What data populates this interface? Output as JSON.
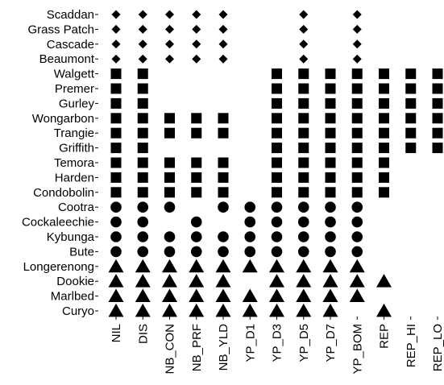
{
  "chart_data": {
    "type": "scatter",
    "title": "",
    "xlabel": "",
    "ylabel": "",
    "categories_x": [
      "NIL",
      "DIS",
      "NB_CON",
      "NB_PRF",
      "NB_YLD",
      "YP_D1",
      "YP_D3",
      "YP_D5",
      "YP_D7",
      "YP_BOM",
      "REP",
      "REP_HI",
      "REP_LO"
    ],
    "categories_y": [
      "Scaddan",
      "Grass Patch",
      "Cascade",
      "Beaumont",
      "Walgett",
      "Premer",
      "Gurley",
      "Wongarbon",
      "Trangie",
      "Griffith",
      "Temora",
      "Harden",
      "Condobolin",
      "Cootra",
      "Cockaleechie",
      "Kybunga",
      "Bute",
      "Longerenong",
      "Dookie",
      "Marlbed",
      "Curyo"
    ],
    "points": [
      {
        "site": "Scaddan",
        "shape": "diamond",
        "present": [
          "NIL",
          "DIS",
          "NB_CON",
          "NB_PRF",
          "NB_YLD",
          "YP_D5",
          "YP_BOM"
        ]
      },
      {
        "site": "Grass Patch",
        "shape": "diamond",
        "present": [
          "NIL",
          "DIS",
          "NB_CON",
          "NB_PRF",
          "NB_YLD",
          "YP_D5",
          "YP_BOM"
        ]
      },
      {
        "site": "Cascade",
        "shape": "diamond",
        "present": [
          "NIL",
          "DIS",
          "NB_CON",
          "NB_PRF",
          "NB_YLD",
          "YP_D5",
          "YP_BOM"
        ]
      },
      {
        "site": "Beaumont",
        "shape": "diamond",
        "present": [
          "NIL",
          "DIS",
          "NB_CON",
          "NB_PRF",
          "NB_YLD",
          "YP_D5",
          "YP_BOM"
        ]
      },
      {
        "site": "Walgett",
        "shape": "square",
        "present": [
          "NIL",
          "DIS",
          "YP_D3",
          "YP_D5",
          "YP_D7",
          "YP_BOM",
          "REP",
          "REP_HI",
          "REP_LO"
        ]
      },
      {
        "site": "Premer",
        "shape": "square",
        "present": [
          "NIL",
          "DIS",
          "YP_D3",
          "YP_D5",
          "YP_D7",
          "YP_BOM",
          "REP",
          "REP_HI",
          "REP_LO"
        ]
      },
      {
        "site": "Gurley",
        "shape": "square",
        "present": [
          "NIL",
          "DIS",
          "YP_D3",
          "YP_D5",
          "YP_D7",
          "YP_BOM",
          "REP",
          "REP_HI",
          "REP_LO"
        ]
      },
      {
        "site": "Wongarbon",
        "shape": "square",
        "present": [
          "NIL",
          "DIS",
          "NB_CON",
          "NB_PRF",
          "NB_YLD",
          "YP_D3",
          "YP_D5",
          "YP_D7",
          "YP_BOM",
          "REP",
          "REP_HI",
          "REP_LO"
        ]
      },
      {
        "site": "Trangie",
        "shape": "square",
        "present": [
          "NIL",
          "DIS",
          "NB_CON",
          "NB_PRF",
          "NB_YLD",
          "YP_D3",
          "YP_D5",
          "YP_D7",
          "YP_BOM",
          "REP",
          "REP_HI",
          "REP_LO"
        ]
      },
      {
        "site": "Griffith",
        "shape": "square",
        "present": [
          "NIL",
          "DIS",
          "YP_D3",
          "YP_D5",
          "YP_D7",
          "YP_BOM",
          "REP",
          "REP_HI",
          "REP_LO"
        ]
      },
      {
        "site": "Temora",
        "shape": "square",
        "present": [
          "NIL",
          "DIS",
          "NB_CON",
          "NB_PRF",
          "NB_YLD",
          "YP_D3",
          "YP_D5",
          "YP_D7",
          "YP_BOM",
          "REP"
        ]
      },
      {
        "site": "Harden",
        "shape": "square",
        "present": [
          "NIL",
          "DIS",
          "NB_CON",
          "NB_PRF",
          "NB_YLD",
          "YP_D3",
          "YP_D5",
          "YP_D7",
          "YP_BOM",
          "REP"
        ]
      },
      {
        "site": "Condobolin",
        "shape": "square",
        "present": [
          "NIL",
          "DIS",
          "NB_CON",
          "NB_PRF",
          "NB_YLD",
          "YP_D3",
          "YP_D5",
          "YP_D7",
          "YP_BOM",
          "REP"
        ]
      },
      {
        "site": "Cootra",
        "shape": "circle",
        "present": [
          "NIL",
          "DIS",
          "NB_CON",
          "NB_YLD",
          "YP_D1",
          "YP_D3",
          "YP_D5",
          "YP_D7",
          "YP_BOM"
        ]
      },
      {
        "site": "Cockaleechie",
        "shape": "circle",
        "present": [
          "NIL",
          "DIS",
          "NB_PRF",
          "YP_D1",
          "YP_D3",
          "YP_D5",
          "YP_D7",
          "YP_BOM"
        ]
      },
      {
        "site": "Kybunga",
        "shape": "circle",
        "present": [
          "NIL",
          "DIS",
          "NB_CON",
          "NB_PRF",
          "NB_YLD",
          "YP_D1",
          "YP_D3",
          "YP_D5",
          "YP_D7",
          "YP_BOM"
        ]
      },
      {
        "site": "Bute",
        "shape": "circle",
        "present": [
          "NIL",
          "DIS",
          "NB_CON",
          "NB_PRF",
          "NB_YLD",
          "YP_D1",
          "YP_D3",
          "YP_D5",
          "YP_D7",
          "YP_BOM"
        ]
      },
      {
        "site": "Longerenong",
        "shape": "triangle",
        "present": [
          "NIL",
          "DIS",
          "NB_CON",
          "NB_PRF",
          "NB_YLD",
          "YP_D1",
          "YP_D3",
          "YP_D5",
          "YP_D7",
          "YP_BOM"
        ]
      },
      {
        "site": "Dookie",
        "shape": "triangle",
        "present": [
          "NIL",
          "DIS",
          "NB_CON",
          "NB_PRF",
          "NB_YLD",
          "YP_D3",
          "YP_D5",
          "YP_D7",
          "YP_BOM",
          "REP"
        ]
      },
      {
        "site": "Marlbed",
        "shape": "triangle",
        "present": [
          "NIL",
          "DIS",
          "NB_CON",
          "NB_PRF",
          "NB_YLD",
          "YP_D1",
          "YP_D3",
          "YP_D5",
          "YP_D7",
          "YP_BOM"
        ]
      },
      {
        "site": "Curyo",
        "shape": "triangle",
        "present": [
          "NIL",
          "DIS",
          "NB_CON",
          "NB_PRF",
          "NB_YLD",
          "YP_D1",
          "YP_D3",
          "YP_D5",
          "YP_D7",
          "REP"
        ]
      }
    ],
    "grid": false,
    "legend": "none",
    "marker_color": "#000000"
  }
}
